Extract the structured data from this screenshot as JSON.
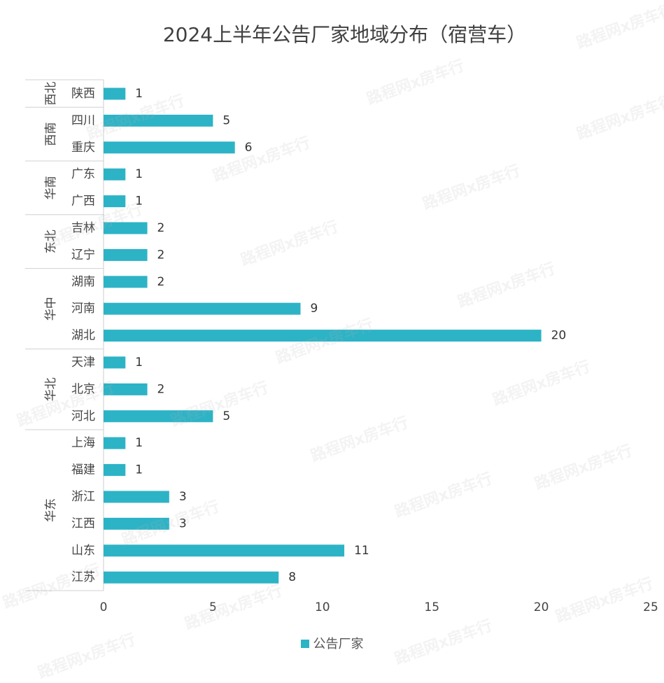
{
  "watermark_text": "路程网x房车行",
  "chart_data": {
    "type": "bar",
    "orientation": "horizontal",
    "title": "2024上半年公告厂家地域分布（宿营车）",
    "legend": [
      "公告厂家"
    ],
    "legend_position": "bottom",
    "bar_color": "#2db3c6",
    "xlim": [
      0,
      25
    ],
    "x_ticks": [
      0,
      5,
      10,
      15,
      20,
      25
    ],
    "grid": false,
    "groups": [
      {
        "name": "西北",
        "items": [
          {
            "label": "陕西",
            "value": 1
          }
        ]
      },
      {
        "name": "西南",
        "items": [
          {
            "label": "四川",
            "value": 5
          },
          {
            "label": "重庆",
            "value": 6
          }
        ]
      },
      {
        "name": "华南",
        "items": [
          {
            "label": "广东",
            "value": 1
          },
          {
            "label": "广西",
            "value": 1
          }
        ]
      },
      {
        "name": "东北",
        "items": [
          {
            "label": "吉林",
            "value": 2
          },
          {
            "label": "辽宁",
            "value": 2
          }
        ]
      },
      {
        "name": "华中",
        "items": [
          {
            "label": "湖南",
            "value": 2
          },
          {
            "label": "河南",
            "value": 9
          },
          {
            "label": "湖北",
            "value": 20
          }
        ]
      },
      {
        "name": "华北",
        "items": [
          {
            "label": "天津",
            "value": 1
          },
          {
            "label": "北京",
            "value": 2
          },
          {
            "label": "河北",
            "value": 5
          }
        ]
      },
      {
        "name": "华东",
        "items": [
          {
            "label": "上海",
            "value": 1
          },
          {
            "label": "福建",
            "value": 1
          },
          {
            "label": "浙江",
            "value": 3
          },
          {
            "label": "江西",
            "value": 3
          },
          {
            "label": "山东",
            "value": 11
          },
          {
            "label": "江苏",
            "value": 8
          }
        ]
      }
    ]
  }
}
